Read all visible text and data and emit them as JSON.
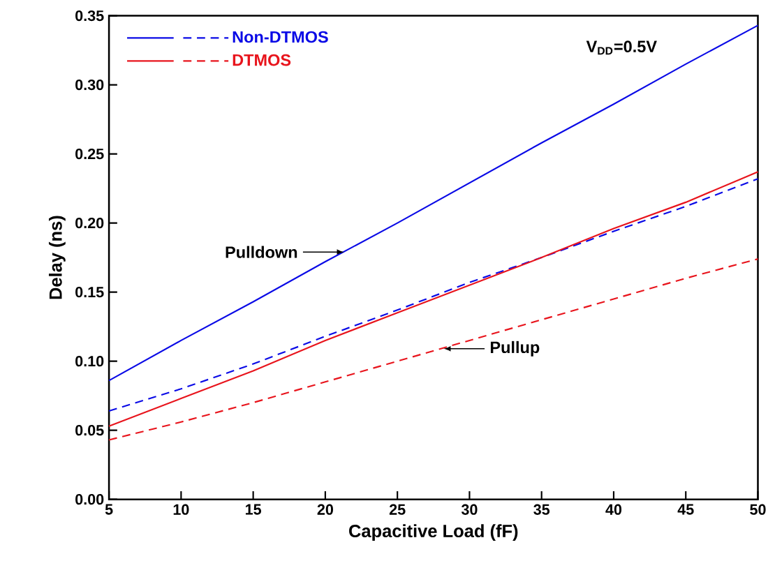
{
  "chart_data": {
    "type": "line",
    "xlabel": "Capacitive Load (fF)",
    "ylabel": "Delay (ns)",
    "x": [
      5,
      10,
      15,
      20,
      25,
      30,
      35,
      40,
      45,
      50
    ],
    "series": [
      {
        "name": "Non-DTMOS",
        "color": "#0a0ae6",
        "line_style": "solid",
        "values": [
          0.086,
          0.115,
          0.143,
          0.172,
          0.2,
          0.229,
          0.258,
          0.286,
          0.315,
          0.343
        ]
      },
      {
        "color": "#0a0ae6",
        "line_style": "dashed",
        "values": [
          0.064,
          0.08,
          0.098,
          0.118,
          0.137,
          0.157,
          0.175,
          0.194,
          0.212,
          0.232
        ]
      },
      {
        "name": "DTMOS",
        "color": "#e8141c",
        "line_style": "solid",
        "values": [
          0.053,
          0.073,
          0.093,
          0.115,
          0.135,
          0.155,
          0.175,
          0.196,
          0.215,
          0.237
        ]
      },
      {
        "color": "#e8141c",
        "line_style": "dashed",
        "values": [
          0.043,
          0.056,
          0.07,
          0.085,
          0.1,
          0.115,
          0.13,
          0.145,
          0.16,
          0.174
        ]
      }
    ],
    "xlim": [
      5,
      50
    ],
    "ylim": [
      0,
      0.35
    ],
    "xticks": [
      5,
      10,
      15,
      20,
      25,
      30,
      35,
      40,
      45,
      50
    ],
    "yticks": [
      {
        "value": 0,
        "label": "0.00"
      },
      {
        "value": 0.05,
        "label": "0.05"
      },
      {
        "value": 0.1,
        "label": "0.10"
      },
      {
        "value": 0.15,
        "label": "0.15"
      },
      {
        "value": 0.2,
        "label": "0.20"
      },
      {
        "value": 0.25,
        "label": "0.25"
      },
      {
        "value": 0.3,
        "label": "0.30"
      },
      {
        "value": 0.35,
        "label": "0.35"
      }
    ],
    "annotations": [
      "V$_{DD}$=0.5V",
      {
        "text": "Pulldown",
        "x": 21.3,
        "y": 0.179
      },
      {
        "text": "Pullup",
        "x": 28.2,
        "y": 0.109
      }
    ],
    "legend": "top left",
    "grid": false,
    "marker": "none"
  }
}
